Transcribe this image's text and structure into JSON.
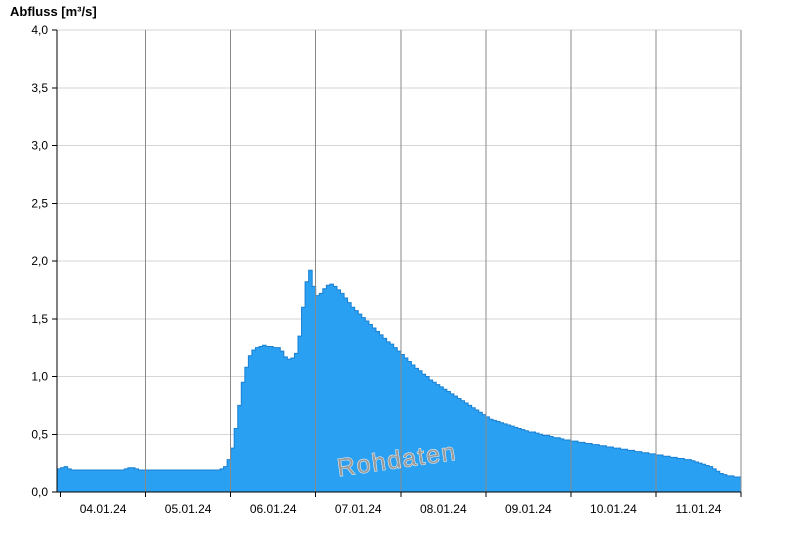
{
  "page": {
    "background": "#ffffff"
  },
  "chart_data": {
    "type": "area",
    "title": "Abfluss [m³/s]",
    "watermark": "Rohdaten",
    "step": true,
    "grid": true,
    "legend": "none",
    "ylim": [
      0,
      4
    ],
    "y_tick_values": [
      0,
      0.5,
      1,
      1.5,
      2,
      2.5,
      3,
      3.5,
      4
    ],
    "y_tick_labels": [
      "0,0",
      "0,5",
      "1,0",
      "1,5",
      "2,0",
      "2,5",
      "3,0",
      "3,5",
      "4,0"
    ],
    "x_day_labels": [
      "04.01.24",
      "05.01.24",
      "06.01.24",
      "07.01.24",
      "08.01.24",
      "09.01.24",
      "10.01.24",
      "11.01.24"
    ],
    "series": [
      {
        "name": "Abfluss",
        "unit": "m³/s",
        "interval_hours": 1,
        "start_offset_hours": -1,
        "values": [
          0.2,
          0.21,
          0.22,
          0.2,
          0.19,
          0.19,
          0.19,
          0.19,
          0.19,
          0.19,
          0.19,
          0.19,
          0.19,
          0.19,
          0.19,
          0.19,
          0.19,
          0.19,
          0.19,
          0.2,
          0.21,
          0.21,
          0.2,
          0.19,
          0.19,
          0.19,
          0.19,
          0.19,
          0.19,
          0.19,
          0.19,
          0.19,
          0.19,
          0.19,
          0.19,
          0.19,
          0.19,
          0.19,
          0.19,
          0.19,
          0.19,
          0.19,
          0.19,
          0.19,
          0.19,
          0.19,
          0.2,
          0.22,
          0.28,
          0.38,
          0.55,
          0.75,
          0.95,
          1.08,
          1.18,
          1.23,
          1.25,
          1.26,
          1.27,
          1.26,
          1.26,
          1.25,
          1.25,
          1.22,
          1.17,
          1.15,
          1.16,
          1.2,
          1.35,
          1.6,
          1.82,
          1.92,
          1.78,
          1.7,
          1.72,
          1.76,
          1.79,
          1.8,
          1.78,
          1.75,
          1.72,
          1.68,
          1.64,
          1.6,
          1.57,
          1.54,
          1.51,
          1.48,
          1.45,
          1.42,
          1.39,
          1.36,
          1.33,
          1.3,
          1.28,
          1.25,
          1.22,
          1.19,
          1.16,
          1.13,
          1.1,
          1.07,
          1.05,
          1.02,
          1.0,
          0.97,
          0.95,
          0.93,
          0.91,
          0.89,
          0.87,
          0.85,
          0.83,
          0.81,
          0.79,
          0.77,
          0.75,
          0.73,
          0.71,
          0.69,
          0.67,
          0.65,
          0.63,
          0.62,
          0.61,
          0.6,
          0.59,
          0.58,
          0.57,
          0.56,
          0.55,
          0.54,
          0.53,
          0.52,
          0.52,
          0.51,
          0.5,
          0.49,
          0.49,
          0.48,
          0.47,
          0.47,
          0.46,
          0.45,
          0.45,
          0.44,
          0.44,
          0.43,
          0.43,
          0.42,
          0.42,
          0.41,
          0.41,
          0.4,
          0.4,
          0.39,
          0.39,
          0.38,
          0.38,
          0.37,
          0.37,
          0.36,
          0.36,
          0.35,
          0.35,
          0.34,
          0.34,
          0.33,
          0.33,
          0.32,
          0.32,
          0.31,
          0.31,
          0.3,
          0.3,
          0.29,
          0.29,
          0.28,
          0.28,
          0.27,
          0.26,
          0.25,
          0.24,
          0.23,
          0.22,
          0.2,
          0.18,
          0.16,
          0.15,
          0.14,
          0.14,
          0.13,
          0.13
        ]
      }
    ],
    "colors": {
      "area_fill": "#2aa0f2",
      "area_stroke": "#1a80d2",
      "grid_horizontal": "#d6d6d6",
      "grid_vertical": "#8a8a8a",
      "axis": "#000000",
      "watermark": "#9a9a9a"
    }
  }
}
